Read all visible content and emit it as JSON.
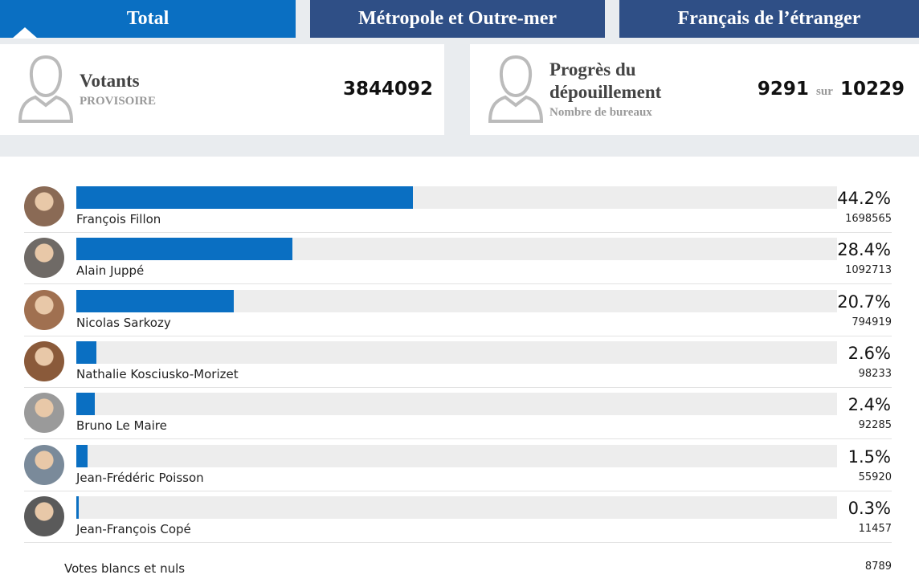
{
  "tabs": [
    "Total",
    "Métropole et Outre-mer",
    "Français de l’étranger"
  ],
  "stats": {
    "voters": {
      "title": "Votants",
      "subtitle": "PROVISOIRE",
      "value": 3844092
    },
    "progress": {
      "title": "Progrès du dépouillement",
      "subtitle": "Nombre de bureaux",
      "counted": 9291,
      "separator": "sur",
      "total": 10229
    }
  },
  "results": [
    {
      "name": "François Fillon",
      "percent": 44.2,
      "percent_label": "44.2%",
      "votes": 1698565
    },
    {
      "name": "Alain Juppé",
      "percent": 28.4,
      "percent_label": "28.4%",
      "votes": 1092713
    },
    {
      "name": "Nicolas Sarkozy",
      "percent": 20.7,
      "percent_label": "20.7%",
      "votes": 794919
    },
    {
      "name": "Nathalie Kosciusko-Morizet",
      "percent": 2.6,
      "percent_label": "2.6%",
      "votes": 98233
    },
    {
      "name": "Bruno Le Maire",
      "percent": 2.4,
      "percent_label": "2.4%",
      "votes": 92285
    },
    {
      "name": "Jean-Frédéric Poisson",
      "percent": 1.5,
      "percent_label": "1.5%",
      "votes": 55920
    },
    {
      "name": "Jean-François Copé",
      "percent": 0.3,
      "percent_label": "0.3%",
      "votes": 11457
    }
  ],
  "blank": {
    "label": "Votes blancs et nuls",
    "votes": 8789
  }
}
